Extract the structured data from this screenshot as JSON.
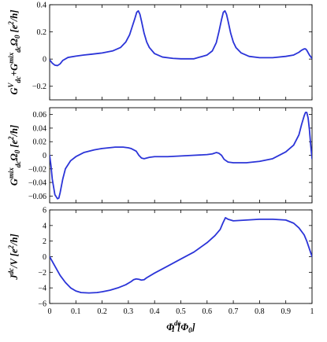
{
  "colors": {
    "series": "#2b34d8",
    "axis": "#000000",
    "background": "#ffffff"
  },
  "chart_data": [
    {
      "type": "line",
      "ylabel_parts": [
        "G",
        "V",
        "dc",
        "+G",
        "mix",
        "dc",
        "Ω",
        "0",
        " [e",
        "2",
        "/h]"
      ],
      "xlim": [
        0,
        1
      ],
      "ylim": [
        -0.3,
        0.4
      ],
      "xticks": [
        "0",
        "0.1",
        "0.2",
        "0.3",
        "0.4",
        "0.5",
        "0.6",
        "0.7",
        "0.8",
        "0.9",
        "1"
      ],
      "xtick_labels_visible": false,
      "yticks": [
        -0.2,
        0,
        0.2,
        0.4
      ],
      "ytick_labels": [
        "−0.2",
        "0",
        "0.2",
        "0.4"
      ],
      "series": [
        {
          "x": [
            0,
            0.01,
            0.02,
            0.03,
            0.04,
            0.05,
            0.07,
            0.1,
            0.13,
            0.16,
            0.2,
            0.24,
            0.27,
            0.29,
            0.305,
            0.315,
            0.325,
            0.332,
            0.338,
            0.344,
            0.35,
            0.36,
            0.37,
            0.38,
            0.4,
            0.43,
            0.47,
            0.5,
            0.55,
            0.6,
            0.62,
            0.635,
            0.645,
            0.655,
            0.662,
            0.668,
            0.674,
            0.68,
            0.69,
            0.7,
            0.71,
            0.73,
            0.76,
            0.8,
            0.85,
            0.9,
            0.93,
            0.95,
            0.96,
            0.97,
            0.975,
            0.98,
            0.99,
            1.0
          ],
          "y": [
            -0.005,
            -0.03,
            -0.045,
            -0.048,
            -0.035,
            -0.01,
            0.012,
            0.022,
            0.03,
            0.036,
            0.045,
            0.06,
            0.085,
            0.125,
            0.18,
            0.24,
            0.3,
            0.345,
            0.355,
            0.33,
            0.28,
            0.19,
            0.125,
            0.085,
            0.04,
            0.015,
            0.005,
            0.002,
            0.002,
            0.03,
            0.06,
            0.12,
            0.2,
            0.29,
            0.345,
            0.355,
            0.33,
            0.28,
            0.19,
            0.125,
            0.085,
            0.045,
            0.02,
            0.01,
            0.01,
            0.02,
            0.03,
            0.05,
            0.065,
            0.075,
            0.075,
            0.065,
            0.03,
            0.005
          ]
        }
      ]
    },
    {
      "type": "line",
      "ylabel_parts": [
        "G",
        "mix",
        "dc",
        "Ω",
        "0",
        " [e",
        "2",
        "/h]"
      ],
      "xlim": [
        0,
        1
      ],
      "ylim": [
        -0.07,
        0.07
      ],
      "xticks": [
        "0",
        "0.1",
        "0.2",
        "0.3",
        "0.4",
        "0.5",
        "0.6",
        "0.7",
        "0.8",
        "0.9",
        "1"
      ],
      "xtick_labels_visible": false,
      "yticks": [
        -0.06,
        -0.04,
        -0.02,
        0,
        0.02,
        0.04,
        0.06
      ],
      "ytick_labels": [
        "−0.06",
        "−0.04",
        "−0.02",
        "0",
        "0.02",
        "0.04",
        "0.06"
      ],
      "series": [
        {
          "x": [
            0,
            0.005,
            0.01,
            0.02,
            0.03,
            0.035,
            0.04,
            0.05,
            0.06,
            0.08,
            0.1,
            0.13,
            0.17,
            0.2,
            0.25,
            0.28,
            0.3,
            0.31,
            0.32,
            0.33,
            0.34,
            0.35,
            0.36,
            0.38,
            0.4,
            0.45,
            0.5,
            0.55,
            0.6,
            0.62,
            0.635,
            0.645,
            0.655,
            0.665,
            0.68,
            0.7,
            0.75,
            0.8,
            0.85,
            0.9,
            0.93,
            0.95,
            0.96,
            0.97,
            0.975,
            0.98,
            0.985,
            0.99,
            0.995,
            1.0
          ],
          "y": [
            0.0,
            -0.015,
            -0.035,
            -0.058,
            -0.064,
            -0.063,
            -0.055,
            -0.035,
            -0.02,
            -0.008,
            -0.002,
            0.004,
            0.008,
            0.01,
            0.012,
            0.012,
            0.011,
            0.01,
            0.008,
            0.006,
            0.0,
            -0.004,
            -0.005,
            -0.003,
            -0.002,
            -0.002,
            -0.001,
            0.0,
            0.001,
            0.002,
            0.004,
            0.003,
            0.0,
            -0.006,
            -0.01,
            -0.011,
            -0.011,
            -0.009,
            -0.005,
            0.005,
            0.015,
            0.03,
            0.045,
            0.058,
            0.063,
            0.063,
            0.055,
            0.038,
            0.015,
            -0.005
          ]
        }
      ]
    },
    {
      "type": "line",
      "ylabel_parts": [
        "J",
        "dc",
        "/V",
        " [e",
        "2",
        "/h]"
      ],
      "xlabel_parts": [
        "Φ",
        "dc",
        "1",
        " [Φ",
        "0",
        "]"
      ],
      "xlim": [
        0,
        1
      ],
      "ylim": [
        -6,
        6
      ],
      "xticks": [
        "0",
        "0.1",
        "0.2",
        "0.3",
        "0.4",
        "0.5",
        "0.6",
        "0.7",
        "0.8",
        "0.9",
        "1"
      ],
      "xtick_labels_visible": true,
      "yticks": [
        -6,
        -4,
        -2,
        0,
        2,
        4,
        6
      ],
      "ytick_labels": [
        "−6",
        "−4",
        "−2",
        "0",
        "2",
        "4",
        "6"
      ],
      "series": [
        {
          "x": [
            0,
            0.02,
            0.04,
            0.06,
            0.08,
            0.1,
            0.12,
            0.15,
            0.18,
            0.2,
            0.23,
            0.26,
            0.29,
            0.31,
            0.32,
            0.33,
            0.34,
            0.35,
            0.36,
            0.37,
            0.4,
            0.45,
            0.5,
            0.55,
            0.6,
            0.63,
            0.65,
            0.66,
            0.67,
            0.68,
            0.7,
            0.75,
            0.8,
            0.85,
            0.9,
            0.93,
            0.95,
            0.97,
            0.98,
            0.99,
            1.0
          ],
          "y": [
            0.0,
            -1.2,
            -2.4,
            -3.3,
            -4.0,
            -4.4,
            -4.6,
            -4.65,
            -4.6,
            -4.5,
            -4.3,
            -4.0,
            -3.6,
            -3.2,
            -2.95,
            -2.85,
            -2.9,
            -3.0,
            -2.95,
            -2.7,
            -2.1,
            -1.2,
            -0.3,
            0.6,
            1.8,
            2.7,
            3.5,
            4.3,
            5.0,
            4.8,
            4.6,
            4.7,
            4.8,
            4.8,
            4.7,
            4.3,
            3.7,
            2.8,
            2.0,
            1.0,
            0.0
          ]
        }
      ]
    }
  ]
}
